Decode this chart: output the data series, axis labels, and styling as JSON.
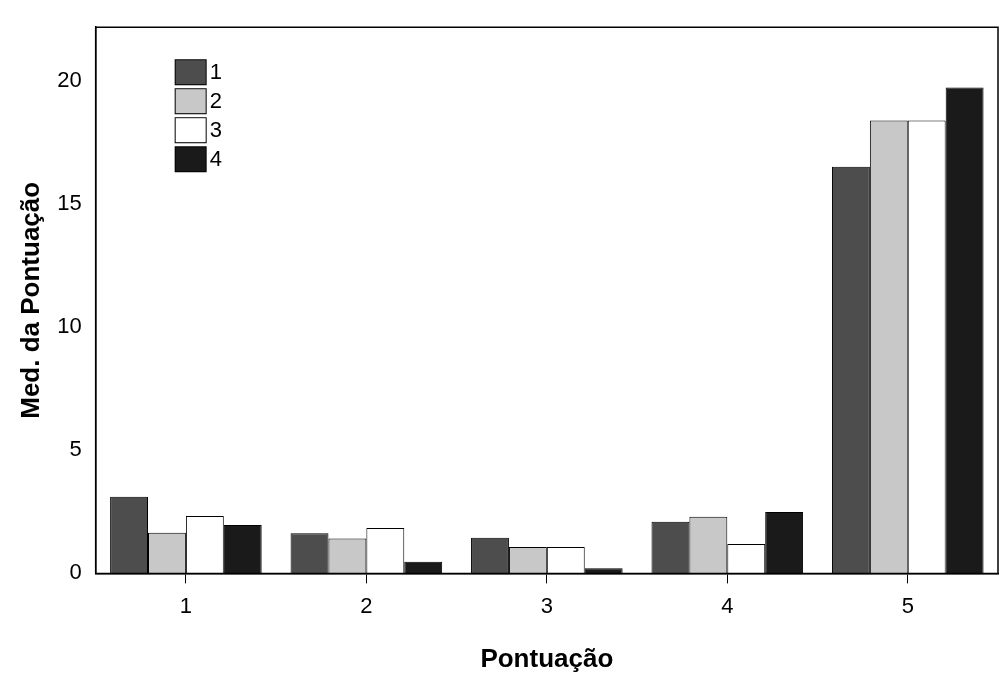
{
  "chart_data": {
    "type": "bar",
    "xlabel": "Pontuação",
    "ylabel": "Med. da Pontuação",
    "categories": [
      "1",
      "2",
      "3",
      "4",
      "5"
    ],
    "series": [
      {
        "name": "1",
        "color": "#4d4d4d",
        "values": [
          3.12,
          1.63,
          1.45,
          2.1,
          16.53
        ]
      },
      {
        "name": "2",
        "color": "#c8c8c8",
        "values": [
          1.65,
          1.42,
          1.07,
          2.3,
          18.41
        ]
      },
      {
        "name": "3",
        "color": "#ffffff",
        "values": [
          2.33,
          1.85,
          1.07,
          1.2,
          18.41
        ]
      },
      {
        "name": "4",
        "color": "#1a1a1a",
        "values": [
          1.97,
          0.47,
          0.21,
          2.5,
          19.75
        ]
      }
    ],
    "ylim": [
      0,
      22.2
    ],
    "yticks": [
      0,
      5,
      10,
      15,
      20
    ],
    "grid": false,
    "legend": "top left"
  }
}
